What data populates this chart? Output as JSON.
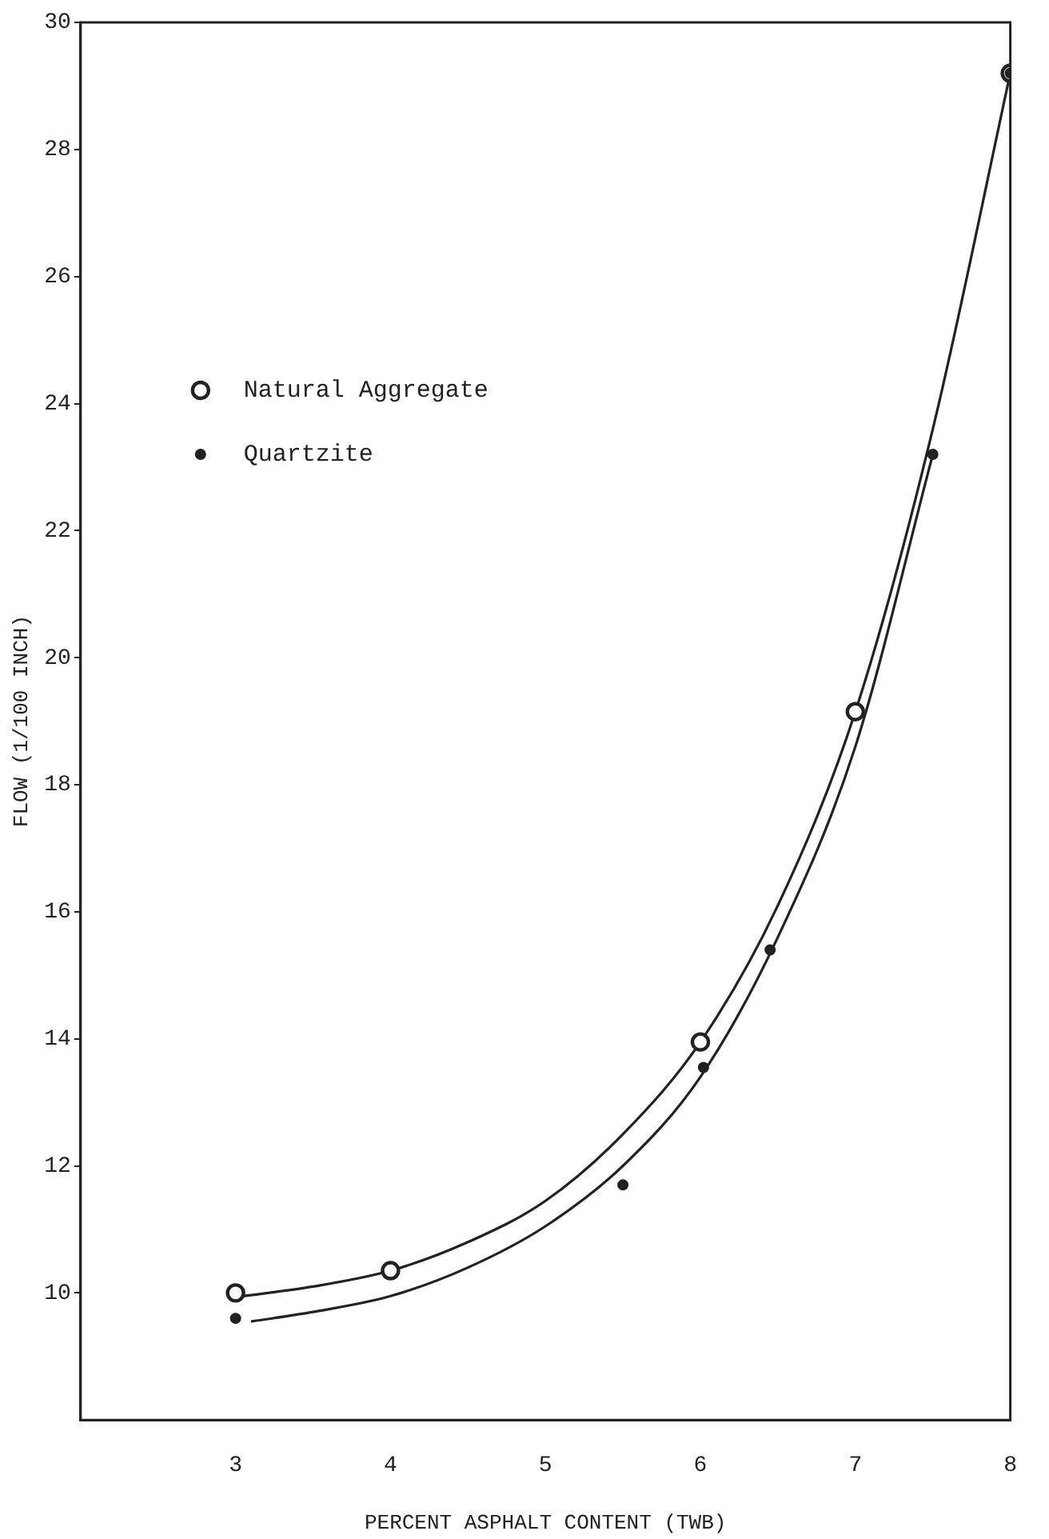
{
  "chart_data": {
    "type": "scatter",
    "xlabel": "PERCENT ASPHALT CONTENT (TWB)",
    "ylabel": "FLOW (1/100 INCH)",
    "xlim": [
      2,
      8
    ],
    "xticks": [
      3,
      4,
      5,
      6,
      7,
      8
    ],
    "ylim": [
      8,
      30
    ],
    "yticks": [
      10,
      12,
      14,
      16,
      18,
      20,
      22,
      24,
      26,
      28,
      30
    ],
    "grid": false,
    "legend": "top left",
    "series": [
      {
        "name": "Natural Aggregate",
        "marker": "circle",
        "color": "#222222",
        "x": [
          3,
          4,
          6,
          7,
          8
        ],
        "values": [
          10.0,
          10.35,
          13.95,
          19.15,
          29.2
        ]
      },
      {
        "name": "Quartzite",
        "marker": "circle",
        "color": "#222222",
        "x": [
          3,
          5.5,
          6.02,
          6.45,
          7.5,
          8
        ],
        "values": [
          9.6,
          11.7,
          13.55,
          15.4,
          23.2,
          29.2
        ]
      },
      {
        "type": "line",
        "color": "#222222",
        "x": [
          3.05,
          3.5,
          4,
          4.5,
          5,
          5.5,
          6,
          6.5,
          7,
          7.5,
          8
        ],
        "values": [
          9.95,
          10.1,
          10.35,
          10.8,
          11.45,
          12.5,
          13.95,
          16.1,
          19.15,
          23.6,
          29.2
        ]
      },
      {
        "type": "line",
        "color": "#222222",
        "x": [
          3.1,
          3.5,
          4,
          4.5,
          5,
          5.5,
          6,
          6.5,
          7,
          7.5
        ],
        "values": [
          9.55,
          9.7,
          9.95,
          10.4,
          11.05,
          12.0,
          13.4,
          15.6,
          18.6,
          23.2
        ]
      }
    ]
  }
}
